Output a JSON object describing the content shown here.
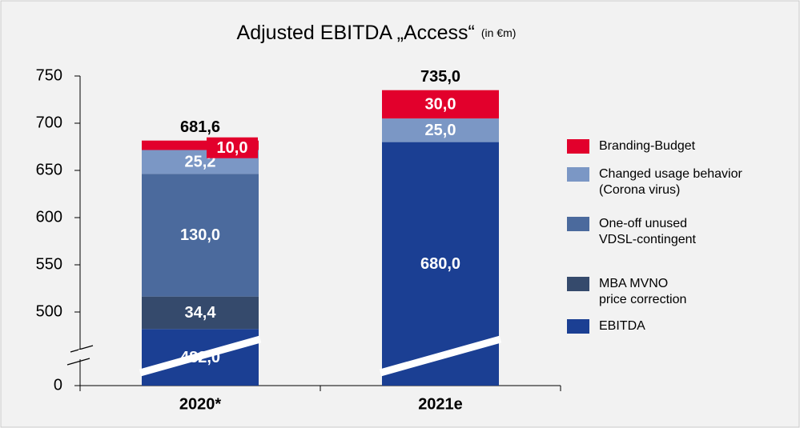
{
  "chart_data": {
    "type": "stacked_bar",
    "title": "Adjusted EBITDA „Access“",
    "subtitle": "(in €m)",
    "categories": [
      "2020*",
      "2021e"
    ],
    "series": [
      {
        "name": "EBITDA",
        "color": "#1b3f93",
        "values": [
          482.0,
          680.0
        ],
        "value_labels": [
          "482,0",
          "680,0"
        ]
      },
      {
        "name": "MBA MVNO price correction",
        "color": "#354a6c",
        "values": [
          34.4,
          null
        ],
        "value_labels": [
          "34,4",
          null
        ]
      },
      {
        "name": "One-off unused VDSL-contingent",
        "color": "#4b6a9d",
        "values": [
          130.0,
          null
        ],
        "value_labels": [
          "130,0",
          null
        ]
      },
      {
        "name": "Changed usage behavior (Corona virus)",
        "color": "#7b97c5",
        "values": [
          25.2,
          25.0
        ],
        "value_labels": [
          "25,2",
          "25,0"
        ]
      },
      {
        "name": "Branding-Budget",
        "color": "#e2002c",
        "values": [
          10.0,
          30.0
        ],
        "value_labels": [
          "10,0",
          "30,0"
        ]
      }
    ],
    "totals": [
      681.6,
      735.0
    ],
    "total_labels": [
      "681,6",
      "735,0"
    ],
    "ylim": [
      0,
      750
    ],
    "yticks": [
      0,
      500,
      550,
      600,
      650,
      700,
      750
    ],
    "axis_break": true,
    "grid": false,
    "legend": "right"
  }
}
